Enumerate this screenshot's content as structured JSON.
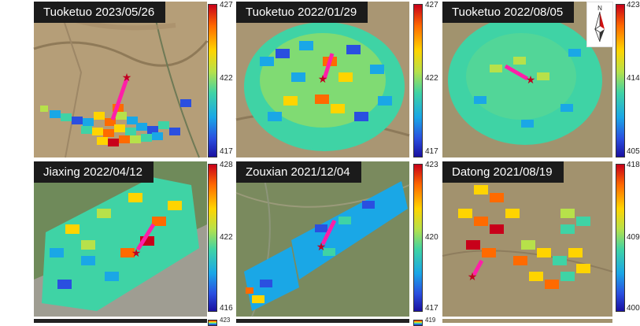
{
  "panels": [
    {
      "title": "Tuoketuo 2023/05/26",
      "ticks": [
        "427",
        "422",
        "417"
      ]
    },
    {
      "title": "Tuoketuo 2022/01/29",
      "ticks": [
        "427",
        "422",
        "417"
      ]
    },
    {
      "title": "Tuoketuo 2022/08/05",
      "ticks": [
        "423",
        "414",
        "405"
      ]
    },
    {
      "title": "Jiaxing 2022/04/12",
      "ticks": [
        "428",
        "422",
        "416"
      ]
    },
    {
      "title": "Zouxian 2021/12/04",
      "ticks": [
        "423",
        "420",
        "417"
      ]
    },
    {
      "title": "Datong 2021/08/19",
      "ticks": [
        "418",
        "409",
        "400"
      ]
    }
  ],
  "bottom_ticks": [
    "423",
    "419"
  ],
  "north_arrow": {
    "label": "N",
    "icon": "north-arrow-icon"
  },
  "colors": {
    "colormap": [
      "#1a10a0",
      "#2a4fe0",
      "#1aa7e6",
      "#3fd3a5",
      "#b7e14a",
      "#ffd400",
      "#ff6a00",
      "#c8001a"
    ],
    "wind_arrow": "#ff1fa8",
    "source_star": "#c00020"
  }
}
